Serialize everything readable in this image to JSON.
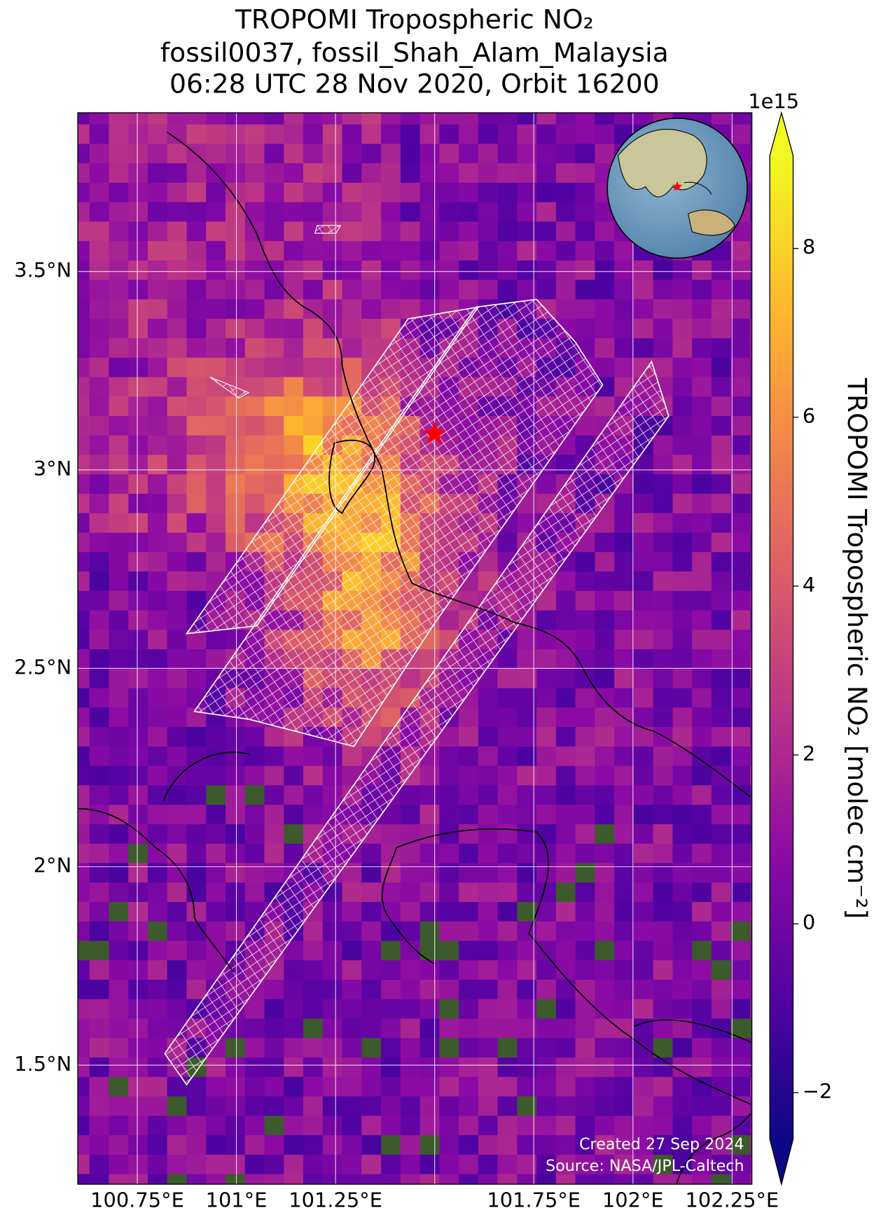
{
  "title": [
    "TROPOMI Tropospheric NO₂",
    "fossil0037, fossil_Shah_Alam_Malaysia",
    "06:28 UTC 28 Nov 2020, Orbit 16200"
  ],
  "map": {
    "xlim": [
      100.6,
      102.3
    ],
    "ylim": [
      1.2,
      3.9
    ],
    "grid": true,
    "xticks": [
      {
        "value": 100.75,
        "label": "100.75°E"
      },
      {
        "value": 101,
        "label": "101°E"
      },
      {
        "value": 101.25,
        "label": "101.25°E"
      },
      {
        "value": 101.5,
        "label": null
      },
      {
        "value": 101.75,
        "label": "101.75°E"
      },
      {
        "value": 102,
        "label": "102°E"
      },
      {
        "value": 102.25,
        "label": "102.25°E"
      }
    ],
    "yticks": [
      {
        "value": 1.5,
        "label": "1.5°N"
      },
      {
        "value": 2,
        "label": "2°N"
      },
      {
        "value": 2.5,
        "label": "2.5°N"
      },
      {
        "value": 3,
        "label": "3°N"
      },
      {
        "value": 3.5,
        "label": "3.5°N"
      }
    ],
    "target": {
      "lon": 101.5,
      "lat": 3.09,
      "color": "#ff0000"
    }
  },
  "colorbar": {
    "label": "TROPOMI Tropospheric NO₂ [molec cm⁻²]",
    "offset": "1e15",
    "cmap": "plasma",
    "clim": [
      -2.55,
      9.1
    ],
    "ticks": [
      {
        "value": -2,
        "label": "−2"
      },
      0,
      2,
      4,
      6,
      8
    ]
  },
  "credits": [
    "Created 27 Sep 2024",
    "Source: NASA/JPL-Caltech"
  ]
}
